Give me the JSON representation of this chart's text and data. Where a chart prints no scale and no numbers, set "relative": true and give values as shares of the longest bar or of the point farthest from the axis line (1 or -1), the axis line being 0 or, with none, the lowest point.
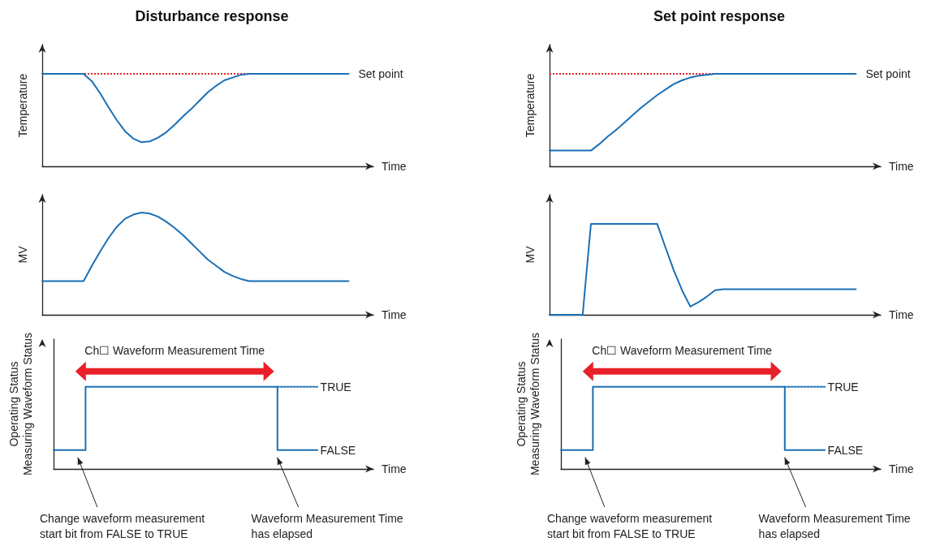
{
  "chart_data": [
    {
      "type": "line",
      "title": "Disturbance response",
      "xlabel": "Time",
      "ylabel": "Temperature",
      "relative": true,
      "categories": [
        null,
        null,
        null,
        null,
        null,
        null,
        null,
        null,
        null,
        null,
        null,
        null,
        null,
        null,
        null,
        null,
        null,
        null,
        null,
        null,
        null,
        null,
        null,
        null,
        null,
        null,
        null,
        null,
        null,
        null,
        null,
        null,
        null,
        null,
        null,
        null,
        null,
        null,
        null,
        null,
        null
      ],
      "series": [
        {
          "color": "#1a6fb5",
          "values": [
            1,
            1,
            1,
            1,
            1,
            1,
            0.92,
            0.79,
            0.64,
            0.5,
            0.38,
            0.3,
            0.26,
            0.27,
            0.31,
            0.37,
            0.45,
            0.54,
            0.62,
            0.71,
            0.8,
            0.87,
            0.93,
            0.96,
            0.99,
            1,
            1,
            1,
            1,
            1,
            1,
            1,
            1,
            1,
            1,
            1,
            1,
            1,
            null,
            null,
            null
          ]
        }
      ],
      "ref_lines": [
        {
          "axis": "y",
          "value": 1,
          "label": "Set point",
          "color": "#e8202a",
          "line_style": "dotted"
        }
      ]
    },
    {
      "type": "line",
      "xlabel": "Time",
      "ylabel": "MV",
      "relative": true,
      "categories": [
        null,
        null,
        null,
        null,
        null,
        null,
        null,
        null,
        null,
        null,
        null,
        null,
        null,
        null,
        null,
        null,
        null,
        null,
        null,
        null,
        null,
        null,
        null,
        null,
        null,
        null,
        null,
        null,
        null,
        null,
        null,
        null,
        null,
        null,
        null,
        null,
        null,
        null,
        null,
        null,
        null
      ],
      "series": [
        {
          "color": "#1a6fb5",
          "values": [
            0.33,
            0.33,
            0.33,
            0.33,
            0.33,
            0.33,
            0.48,
            0.62,
            0.75,
            0.86,
            0.94,
            0.98,
            1,
            0.99,
            0.96,
            0.91,
            0.85,
            0.78,
            0.7,
            0.62,
            0.54,
            0.48,
            0.42,
            0.38,
            0.35,
            0.33,
            0.33,
            0.33,
            0.33,
            0.33,
            0.33,
            0.33,
            0.33,
            0.33,
            0.33,
            0.33,
            0.33,
            0.33,
            null,
            null,
            null
          ]
        }
      ]
    },
    {
      "type": "step",
      "xlabel": "Time",
      "ylabel": "Operating Status\nMeasuring Waveform Status",
      "relative": true,
      "categories": [
        null,
        null,
        null,
        null,
        null,
        null,
        null,
        null,
        null,
        null,
        null,
        null,
        null,
        null,
        null,
        null,
        null,
        null,
        null,
        null,
        null,
        null,
        null,
        null,
        null,
        null,
        null,
        null,
        null,
        null,
        null,
        null,
        null,
        null,
        null,
        null,
        null,
        null,
        null,
        null,
        null
      ],
      "series": [
        {
          "color": "#1a6fb5",
          "values": [
            0.23,
            0.23,
            0.23,
            0.23,
            0.23,
            1,
            1,
            1,
            1,
            1,
            1,
            1,
            1,
            1,
            1,
            1,
            1,
            1,
            1,
            1,
            1,
            1,
            1,
            1,
            1,
            1,
            1,
            1,
            1,
            0.23,
            0.23,
            0.23,
            0.23,
            0.23,
            null,
            null,
            null,
            null,
            null,
            null,
            null
          ]
        },
        {
          "type": "line",
          "color": "#1a6fb5",
          "line_style": "dotted",
          "values": [
            null,
            null,
            null,
            null,
            null,
            null,
            null,
            null,
            null,
            null,
            null,
            null,
            null,
            null,
            null,
            null,
            null,
            null,
            null,
            null,
            null,
            null,
            null,
            null,
            null,
            null,
            null,
            null,
            1,
            1,
            1,
            1,
            1,
            1,
            null,
            null,
            null,
            null,
            null,
            null,
            null
          ]
        }
      ],
      "annotations": [
        "Ch☐ Waveform Measurement Time",
        "TRUE",
        "FALSE",
        "Change waveform measurement start bit from FALSE to TRUE",
        "Waveform Measurement Time has elapsed"
      ]
    },
    {
      "type": "line",
      "title": "Set point response",
      "xlabel": "Time",
      "ylabel": "Temperature",
      "relative": true,
      "categories": [
        null,
        null,
        null,
        null,
        null,
        null,
        null,
        null,
        null,
        null,
        null,
        null,
        null,
        null,
        null,
        null,
        null,
        null,
        null,
        null,
        null,
        null,
        null,
        null,
        null,
        null,
        null,
        null,
        null,
        null,
        null,
        null,
        null,
        null,
        null,
        null,
        null,
        null,
        null,
        null,
        null
      ],
      "series": [
        {
          "color": "#1a6fb5",
          "values": [
            0.17,
            0.17,
            0.17,
            0.17,
            0.17,
            0.17,
            0.24,
            0.32,
            0.39,
            0.47,
            0.55,
            0.63,
            0.7,
            0.77,
            0.83,
            0.89,
            0.93,
            0.96,
            0.98,
            0.99,
            1,
            1,
            1,
            1,
            1,
            1,
            1,
            1,
            1,
            1,
            1,
            1,
            1,
            1,
            1,
            1,
            1,
            1,
            null,
            null,
            null
          ]
        }
      ],
      "ref_lines": [
        {
          "axis": "y",
          "value": 1,
          "label": "Set point",
          "color": "#e8202a",
          "line_style": "dotted"
        }
      ]
    },
    {
      "type": "line",
      "xlabel": "Time",
      "ylabel": "MV",
      "relative": true,
      "categories": [
        null,
        null,
        null,
        null,
        null,
        null,
        null,
        null,
        null,
        null,
        null,
        null,
        null,
        null,
        null,
        null,
        null,
        null,
        null,
        null,
        null,
        null,
        null,
        null,
        null,
        null,
        null,
        null,
        null,
        null,
        null,
        null,
        null,
        null,
        null,
        null,
        null,
        null,
        null,
        null,
        null
      ],
      "series": [
        {
          "color": "#1a6fb5",
          "values": [
            0,
            0,
            0,
            0,
            0,
            1,
            1,
            1,
            1,
            1,
            1,
            1,
            1,
            1,
            0.74,
            0.49,
            0.27,
            0.09,
            0.14,
            0.2,
            0.27,
            0.28,
            0.28,
            0.28,
            0.28,
            0.28,
            0.28,
            0.28,
            0.28,
            0.28,
            0.28,
            0.28,
            0.28,
            0.28,
            0.28,
            0.28,
            0.28,
            0.28,
            null,
            null,
            null
          ]
        }
      ]
    },
    {
      "type": "step",
      "xlabel": "Time",
      "ylabel": "Operating Status\nMeasuring Waveform Status",
      "relative": true,
      "categories": [
        null,
        null,
        null,
        null,
        null,
        null,
        null,
        null,
        null,
        null,
        null,
        null,
        null,
        null,
        null,
        null,
        null,
        null,
        null,
        null,
        null,
        null,
        null,
        null,
        null,
        null,
        null,
        null,
        null,
        null,
        null,
        null,
        null,
        null,
        null,
        null,
        null,
        null,
        null,
        null,
        null
      ],
      "series": [
        {
          "color": "#1a6fb5",
          "values": [
            0.23,
            0.23,
            0.23,
            0.23,
            0.23,
            1,
            1,
            1,
            1,
            1,
            1,
            1,
            1,
            1,
            1,
            1,
            1,
            1,
            1,
            1,
            1,
            1,
            1,
            1,
            1,
            1,
            1,
            1,
            1,
            0.23,
            0.23,
            0.23,
            0.23,
            0.23,
            null,
            null,
            null,
            null,
            null,
            null,
            null
          ]
        },
        {
          "type": "line",
          "color": "#1a6fb5",
          "line_style": "dotted",
          "values": [
            null,
            null,
            null,
            null,
            null,
            null,
            null,
            null,
            null,
            null,
            null,
            null,
            null,
            null,
            null,
            null,
            null,
            null,
            null,
            null,
            null,
            null,
            null,
            null,
            null,
            null,
            null,
            null,
            1,
            1,
            1,
            1,
            1,
            1,
            null,
            null,
            null,
            null,
            null,
            null,
            null
          ]
        }
      ],
      "annotations": [
        "Ch☐ Waveform Measurement Time",
        "TRUE",
        "FALSE",
        "Change waveform measurement start bit from FALSE to TRUE",
        "Waveform Measurement Time has elapsed"
      ]
    }
  ]
}
